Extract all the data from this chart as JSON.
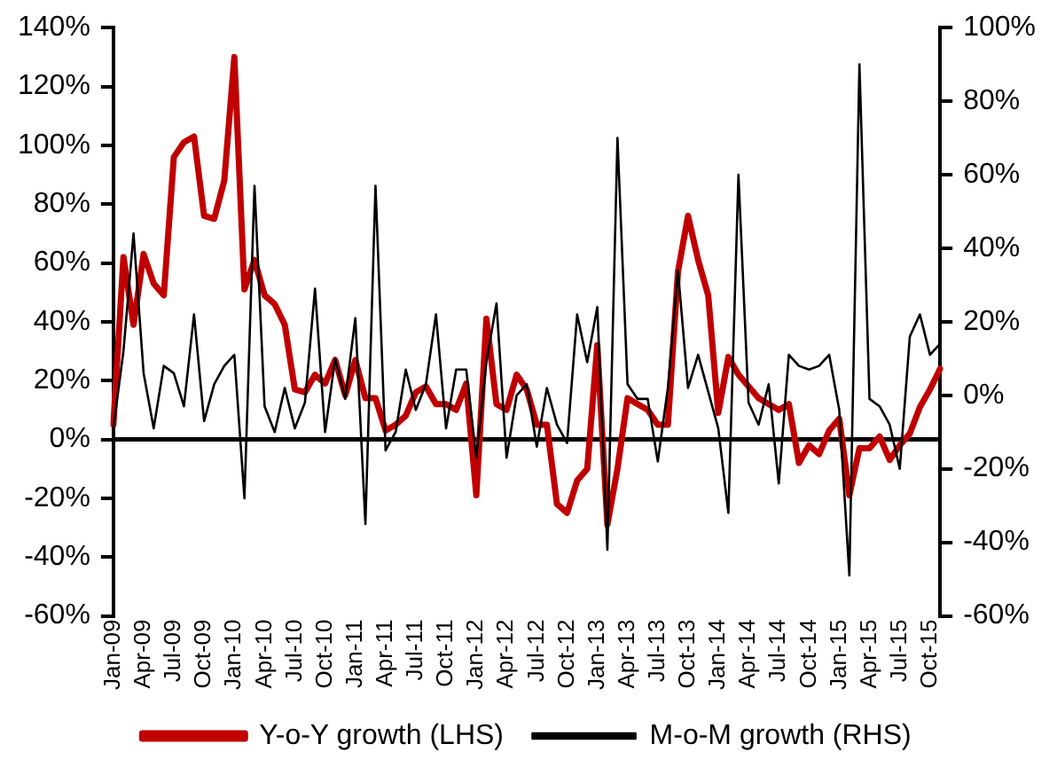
{
  "chart_data": {
    "type": "line",
    "categories": [
      "Jan-09",
      null,
      null,
      "Apr-09",
      null,
      null,
      "Jul-09",
      null,
      null,
      "Oct-09",
      null,
      null,
      "Jan-10",
      null,
      null,
      "Apr-10",
      null,
      null,
      "Jul-10",
      null,
      null,
      "Oct-10",
      null,
      null,
      "Jan-11",
      null,
      null,
      "Apr-11",
      null,
      null,
      "Jul-11",
      null,
      null,
      "Oct-11",
      null,
      null,
      "Jan-12",
      null,
      null,
      "Apr-12",
      null,
      null,
      "Jul-12",
      null,
      null,
      "Oct-12",
      null,
      null,
      "Jan-13",
      null,
      null,
      "Apr-13",
      null,
      null,
      "Jul-13",
      null,
      null,
      "Oct-13",
      null,
      null,
      "Jan-14",
      null,
      null,
      "Apr-14",
      null,
      null,
      "Jul-14",
      null,
      null,
      "Oct-14",
      null,
      null,
      "Jan-15",
      null,
      null,
      "Apr-15",
      null,
      null,
      "Jul-15",
      null,
      null,
      "Oct-15",
      null
    ],
    "series": [
      {
        "name": "Y-o-Y growth (LHS)",
        "color": "#c00000",
        "axis": "y",
        "values": [
          5,
          62,
          39,
          63,
          53,
          49,
          96,
          101,
          103,
          76,
          75,
          88,
          130,
          51,
          61,
          49,
          46,
          39,
          17,
          16,
          22,
          19,
          27,
          15,
          27,
          14,
          14,
          3,
          5,
          8,
          16,
          18,
          12,
          12,
          10,
          19,
          -19,
          41,
          12,
          10,
          22,
          17,
          5,
          5,
          -22,
          -25,
          -14,
          -10,
          32,
          -29,
          -10,
          14,
          12,
          10,
          5,
          5,
          57,
          76,
          61,
          49,
          9,
          28,
          22,
          18,
          14,
          12,
          10,
          12,
          -8,
          -2,
          -5,
          3,
          7,
          -19,
          -3,
          -3,
          1,
          -7,
          -2,
          2,
          11,
          17,
          24
        ]
      },
      {
        "name": "M-o-M growth (RHS)",
        "color": "#000000",
        "axis": "y2",
        "values": [
          -9,
          12,
          44,
          6,
          -9,
          8,
          6,
          -3,
          22,
          -7,
          3,
          8,
          11,
          -28,
          57,
          -3,
          -10,
          2,
          -9,
          -2,
          29,
          -10,
          10,
          -1,
          21,
          -35,
          57,
          -15,
          -10,
          7,
          -4,
          3,
          22,
          -9,
          7,
          7,
          -17,
          9,
          25,
          -17,
          0,
          3,
          -14,
          2,
          -8,
          -13,
          22,
          9,
          24,
          -42,
          70,
          3,
          -1,
          -1,
          -18,
          2,
          34,
          2,
          11,
          1,
          -9,
          -32,
          60,
          -2,
          -8,
          3,
          -24,
          11,
          8,
          7,
          8,
          11,
          -4,
          -49,
          90,
          -1,
          -3,
          -8,
          -20,
          16,
          22,
          11,
          14
        ]
      }
    ],
    "ylim": [
      -60,
      140
    ],
    "yticks": [
      {
        "value": -60,
        "label": "-60%"
      },
      {
        "value": -40,
        "label": "-40%"
      },
      {
        "value": -20,
        "label": "-20%"
      },
      {
        "value": 0,
        "label": "0%"
      },
      {
        "value": 20,
        "label": "20%"
      },
      {
        "value": 40,
        "label": "40%"
      },
      {
        "value": 60,
        "label": "60%"
      },
      {
        "value": 80,
        "label": "80%"
      },
      {
        "value": 100,
        "label": "100%"
      },
      {
        "value": 120,
        "label": "120%"
      },
      {
        "value": 140,
        "label": "140%"
      }
    ],
    "y2lim": [
      -60,
      100
    ],
    "y2ticks": [
      {
        "value": -60,
        "label": "-60%"
      },
      {
        "value": -40,
        "label": "-40%"
      },
      {
        "value": -20,
        "label": "-20%"
      },
      {
        "value": 0,
        "label": "0%"
      },
      {
        "value": 20,
        "label": "20%"
      },
      {
        "value": 40,
        "label": "40%"
      },
      {
        "value": 60,
        "label": "60%"
      },
      {
        "value": 80,
        "label": "80%"
      },
      {
        "value": 100,
        "label": "100%"
      }
    ],
    "ref_lines": [
      {
        "axis": "y",
        "value": 0,
        "color": "#000000"
      }
    ],
    "grid": false,
    "legend": "bottom",
    "marker": "none",
    "line_style": "solid"
  }
}
